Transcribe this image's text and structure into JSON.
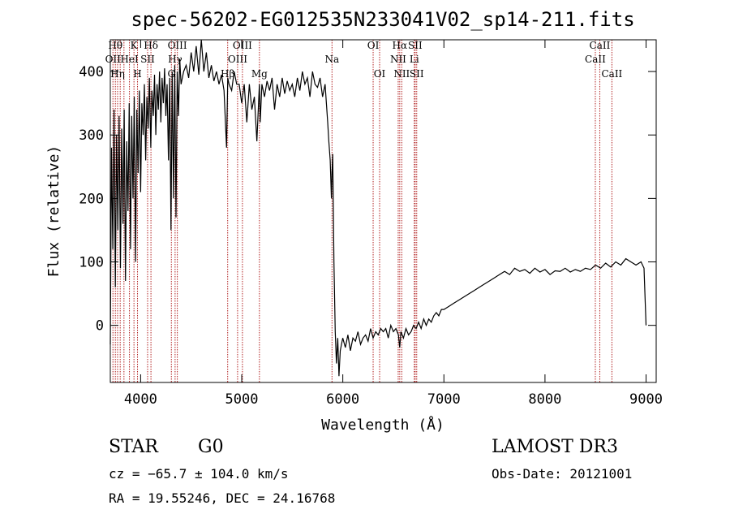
{
  "chart_data": {
    "type": "line",
    "title": "spec-56202-EG012535N233041V02_sp14-211.fits",
    "xlabel": "Wavelength (Å)",
    "ylabel": "Flux (relative)",
    "xlim": [
      3700,
      9100
    ],
    "ylim": [
      -90,
      450
    ],
    "x_ticks": [
      4000,
      5000,
      6000,
      7000,
      8000,
      9000
    ],
    "y_ticks": [
      0,
      100,
      200,
      300,
      400
    ],
    "grid": false,
    "legend": "none",
    "line_color": "#000000",
    "marker_color": "#b22222",
    "series": [
      {
        "x": [
          3700,
          3712,
          3725,
          3737,
          3750,
          3762,
          3775,
          3787,
          3800,
          3812,
          3825,
          3837,
          3850,
          3862,
          3875,
          3887,
          3900,
          3912,
          3925,
          3937,
          3950,
          3962,
          3975,
          3987,
          4000,
          4012,
          4025,
          4037,
          4050,
          4062,
          4075,
          4087,
          4100,
          4112,
          4125,
          4137,
          4150,
          4162,
          4175,
          4187,
          4200,
          4212,
          4225,
          4237,
          4250,
          4262,
          4275,
          4287,
          4300,
          4312,
          4325,
          4337,
          4350,
          4362,
          4375,
          4387,
          4400,
          4425,
          4450,
          4475,
          4500,
          4525,
          4550,
          4575,
          4600,
          4625,
          4650,
          4675,
          4700,
          4725,
          4750,
          4775,
          4800,
          4825,
          4850,
          4862,
          4875,
          4900,
          4925,
          4950,
          4975,
          5000,
          5025,
          5050,
          5075,
          5100,
          5125,
          5150,
          5175,
          5183,
          5200,
          5225,
          5250,
          5275,
          5300,
          5325,
          5350,
          5375,
          5400,
          5425,
          5450,
          5475,
          5500,
          5525,
          5550,
          5575,
          5600,
          5625,
          5650,
          5675,
          5700,
          5725,
          5750,
          5775,
          5800,
          5825,
          5850,
          5862,
          5875,
          5887,
          5893,
          5900,
          5912,
          5925,
          5937,
          5950,
          5962,
          5975,
          5987,
          6000,
          6025,
          6050,
          6075,
          6100,
          6125,
          6150,
          6175,
          6200,
          6225,
          6250,
          6275,
          6300,
          6325,
          6350,
          6375,
          6400,
          6425,
          6450,
          6475,
          6500,
          6525,
          6550,
          6563,
          6575,
          6600,
          6625,
          6650,
          6675,
          6700,
          6725,
          6750,
          6775,
          6800,
          6825,
          6850,
          6875,
          6900,
          6925,
          6950,
          6975,
          7000,
          7050,
          7100,
          7150,
          7200,
          7250,
          7300,
          7350,
          7400,
          7450,
          7500,
          7550,
          7600,
          7650,
          7700,
          7750,
          7800,
          7850,
          7900,
          7950,
          8000,
          8050,
          8100,
          8150,
          8200,
          8250,
          8300,
          8350,
          8400,
          8450,
          8500,
          8550,
          8600,
          8650,
          8700,
          8750,
          8800,
          8850,
          8900,
          8950,
          8980,
          9000
        ],
        "values": [
          -30,
          280,
          120,
          340,
          60,
          300,
          150,
          330,
          90,
          310,
          160,
          340,
          70,
          290,
          180,
          350,
          120,
          330,
          200,
          360,
          100,
          340,
          240,
          370,
          210,
          350,
          300,
          380,
          260,
          360,
          310,
          390,
          280,
          370,
          330,
          395,
          300,
          380,
          340,
          400,
          320,
          390,
          350,
          405,
          330,
          380,
          260,
          390,
          150,
          400,
          200,
          410,
          170,
          400,
          330,
          420,
          380,
          400,
          410,
          390,
          430,
          400,
          440,
          395,
          450,
          400,
          430,
          390,
          410,
          385,
          400,
          380,
          395,
          370,
          280,
          390,
          380,
          370,
          400,
          380,
          380,
          350,
          380,
          320,
          380,
          340,
          360,
          290,
          380,
          320,
          380,
          360,
          385,
          370,
          390,
          340,
          380,
          360,
          390,
          365,
          385,
          370,
          380,
          360,
          390,
          370,
          400,
          380,
          390,
          360,
          400,
          380,
          375,
          390,
          360,
          380,
          320,
          290,
          260,
          200,
          240,
          270,
          100,
          -10,
          -60,
          -20,
          -80,
          -40,
          -30,
          -20,
          -35,
          -15,
          -40,
          -20,
          -25,
          -10,
          -30,
          -20,
          -15,
          -25,
          -5,
          -20,
          -10,
          -15,
          -5,
          -10,
          -5,
          -20,
          0,
          -10,
          -5,
          -15,
          -35,
          -10,
          -20,
          -5,
          -15,
          -10,
          0,
          -5,
          5,
          -5,
          10,
          0,
          10,
          5,
          15,
          20,
          15,
          25,
          25,
          30,
          35,
          40,
          45,
          50,
          55,
          60,
          65,
          70,
          75,
          80,
          85,
          80,
          90,
          85,
          88,
          82,
          90,
          84,
          88,
          80,
          86,
          85,
          90,
          84,
          88,
          85,
          90,
          88,
          95,
          90,
          98,
          92,
          100,
          95,
          105,
          100,
          95,
          100,
          90,
          0
        ]
      }
    ],
    "lines": [
      {
        "x": 3726,
        "label": "OII",
        "row": 2
      },
      {
        "x": 3750,
        "label": "Hθ",
        "row": 1
      },
      {
        "x": 3772,
        "label": "Hη",
        "row": 3
      },
      {
        "x": 3798,
        "label": "",
        "row": 0
      },
      {
        "x": 3835,
        "label": "",
        "row": 0
      },
      {
        "x": 3889,
        "label": "HeI",
        "row": 2
      },
      {
        "x": 3934,
        "label": "K",
        "row": 1
      },
      {
        "x": 3969,
        "label": "H",
        "row": 3
      },
      {
        "x": 4069,
        "label": "SII",
        "row": 2
      },
      {
        "x": 4102,
        "label": "Hδ",
        "row": 1
      },
      {
        "x": 4304,
        "label": "G",
        "row": 3
      },
      {
        "x": 4341,
        "label": "Hγ",
        "row": 2
      },
      {
        "x": 4363,
        "label": "OIII",
        "row": 1
      },
      {
        "x": 4861,
        "label": "Hβ",
        "row": 3
      },
      {
        "x": 4959,
        "label": "OIII",
        "row": 2
      },
      {
        "x": 5007,
        "label": "OIII",
        "row": 1
      },
      {
        "x": 5175,
        "label": "Mg",
        "row": 3
      },
      {
        "x": 5893,
        "label": "Na",
        "row": 2
      },
      {
        "x": 6300,
        "label": "OI",
        "row": 1
      },
      {
        "x": 6364,
        "label": "OI",
        "row": 3
      },
      {
        "x": 6548,
        "label": "NII",
        "row": 2
      },
      {
        "x": 6563,
        "label": "Hα",
        "row": 1
      },
      {
        "x": 6583,
        "label": "NII",
        "row": 3
      },
      {
        "x": 6707,
        "label": "Li",
        "row": 2
      },
      {
        "x": 6716,
        "label": "SII",
        "row": 1
      },
      {
        "x": 6731,
        "label": "SII",
        "row": 3
      },
      {
        "x": 8498,
        "label": "CaII",
        "row": 2
      },
      {
        "x": 8542,
        "label": "CaII",
        "row": 1
      },
      {
        "x": 8662,
        "label": "CaII",
        "row": 3
      }
    ]
  },
  "info": {
    "class": "STAR",
    "subclass": "G0",
    "survey": "LAMOST DR3",
    "cz": "cz = −65.7 ± 104.0 km/s",
    "obs_date": "Obs-Date: 20121001",
    "radec": "RA =  19.55246, DEC =  24.16768"
  }
}
